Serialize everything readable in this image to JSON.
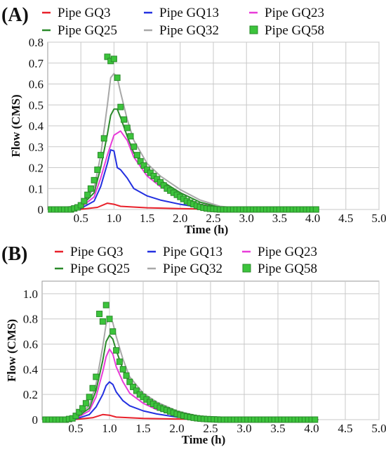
{
  "chart_data": [
    {
      "panel_label": "(A)",
      "type": "line",
      "xlabel": "Time (h)",
      "ylabel": "Flow (CMS)",
      "xlim": [
        0,
        5.0
      ],
      "ylim": [
        0,
        0.8
      ],
      "x_ticks": [
        "0.5",
        "1.0",
        "1.5",
        "2.0",
        "2.5",
        "3.0",
        "3.5",
        "4.0",
        "4.5",
        "5.0"
      ],
      "y_ticks": [
        "0",
        "0.1",
        "0.2",
        "0.3",
        "0.4",
        "0.5",
        "0.6",
        "0.7",
        "0.8"
      ],
      "grid": true,
      "legend_position": "top",
      "series": [
        {
          "name": "Pipe GQ3",
          "color": "#e8202a",
          "style": "line",
          "x": [
            0.0,
            0.5,
            0.75,
            0.9,
            1.0,
            1.1,
            1.5,
            2.0,
            2.5,
            3.0,
            4.1
          ],
          "y": [
            0.0,
            0.001,
            0.01,
            0.03,
            0.025,
            0.015,
            0.008,
            0.004,
            0.001,
            0.0,
            0.0
          ]
        },
        {
          "name": "Pipe GQ13",
          "color": "#2330e0",
          "style": "line",
          "x": [
            0.0,
            0.5,
            0.7,
            0.8,
            0.9,
            0.95,
            1.0,
            1.05,
            1.1,
            1.2,
            1.3,
            1.5,
            1.7,
            2.0,
            2.3,
            2.6,
            3.0,
            4.1
          ],
          "y": [
            0.0,
            0.005,
            0.04,
            0.11,
            0.22,
            0.285,
            0.28,
            0.2,
            0.19,
            0.15,
            0.1,
            0.065,
            0.045,
            0.025,
            0.01,
            0.003,
            0.0,
            0.0
          ]
        },
        {
          "name": "Pipe GQ23",
          "color": "#e83cd8",
          "style": "line",
          "x": [
            0.0,
            0.5,
            0.7,
            0.8,
            0.9,
            1.0,
            1.1,
            1.2,
            1.3,
            1.5,
            1.7,
            2.0,
            2.3,
            2.6,
            3.0,
            4.1
          ],
          "y": [
            0.0,
            0.01,
            0.06,
            0.15,
            0.26,
            0.355,
            0.375,
            0.33,
            0.25,
            0.16,
            0.11,
            0.06,
            0.025,
            0.008,
            0.002,
            0.0
          ]
        },
        {
          "name": "Pipe GQ25",
          "color": "#2a8a2a",
          "style": "line",
          "x": [
            0.0,
            0.5,
            0.7,
            0.8,
            0.9,
            0.95,
            1.0,
            1.05,
            1.1,
            1.2,
            1.3,
            1.5,
            1.7,
            2.0,
            2.3,
            2.6,
            3.0,
            4.1
          ],
          "y": [
            0.0,
            0.015,
            0.08,
            0.2,
            0.36,
            0.45,
            0.48,
            0.48,
            0.44,
            0.35,
            0.27,
            0.19,
            0.14,
            0.08,
            0.035,
            0.01,
            0.002,
            0.0
          ]
        },
        {
          "name": "Pipe GQ32",
          "color": "#a8a8a8",
          "style": "line",
          "x": [
            0.0,
            0.5,
            0.7,
            0.8,
            0.9,
            0.95,
            1.0,
            1.05,
            1.1,
            1.2,
            1.3,
            1.5,
            1.7,
            2.0,
            2.3,
            2.6,
            3.0,
            4.1
          ],
          "y": [
            0.0,
            0.02,
            0.1,
            0.26,
            0.5,
            0.63,
            0.65,
            0.63,
            0.56,
            0.43,
            0.33,
            0.22,
            0.16,
            0.095,
            0.045,
            0.015,
            0.003,
            0.0
          ]
        },
        {
          "name": "Pipe GQ58",
          "color": "#3cc43c",
          "border": "#2a8a2a",
          "style": "marker",
          "x": [
            0.05,
            0.1,
            0.15,
            0.2,
            0.25,
            0.3,
            0.35,
            0.4,
            0.45,
            0.5,
            0.55,
            0.6,
            0.65,
            0.7,
            0.75,
            0.8,
            0.85,
            0.9,
            0.95,
            1.0,
            1.05,
            1.1,
            1.15,
            1.2,
            1.25,
            1.3,
            1.35,
            1.4,
            1.45,
            1.5,
            1.55,
            1.6,
            1.65,
            1.7,
            1.75,
            1.8,
            1.85,
            1.9,
            1.95,
            2.0,
            2.05,
            2.1,
            2.15,
            2.2,
            2.25,
            2.3,
            2.35,
            2.4,
            2.45,
            2.5,
            2.55,
            2.6,
            2.65,
            2.7,
            2.75,
            2.8,
            2.85,
            2.9,
            2.95,
            3.0,
            3.05,
            3.1,
            3.15,
            3.2,
            3.25,
            3.3,
            3.35,
            3.4,
            3.45,
            3.5,
            3.55,
            3.6,
            3.65,
            3.7,
            3.75,
            3.8,
            3.85,
            3.9,
            3.95,
            4.0,
            4.05
          ],
          "y": [
            0.0,
            0.0,
            0.0,
            0.0,
            0.0,
            0.0,
            0.0,
            0.005,
            0.01,
            0.02,
            0.04,
            0.07,
            0.1,
            0.14,
            0.19,
            0.26,
            0.34,
            0.73,
            0.71,
            0.72,
            0.63,
            0.49,
            0.43,
            0.39,
            0.35,
            0.3,
            0.26,
            0.23,
            0.21,
            0.19,
            0.175,
            0.16,
            0.145,
            0.13,
            0.115,
            0.1,
            0.09,
            0.08,
            0.07,
            0.06,
            0.05,
            0.04,
            0.032,
            0.025,
            0.018,
            0.012,
            0.008,
            0.005,
            0.003,
            0.002,
            0.001,
            0.0,
            0.0,
            0.0,
            0.0,
            0.0,
            0.0,
            0.0,
            0.0,
            0.0,
            0.0,
            0.0,
            0.0,
            0.0,
            0.0,
            0.0,
            0.0,
            0.0,
            0.0,
            0.0,
            0.0,
            0.0,
            0.0,
            0.0,
            0.0,
            0.0,
            0.0,
            0.0,
            0.0,
            0.0,
            0.0
          ]
        }
      ]
    },
    {
      "panel_label": "(B)",
      "type": "line",
      "xlabel": "Time (h)",
      "ylabel": "Flow (CMS)",
      "xlim": [
        0,
        5.0
      ],
      "ylim": [
        0,
        1.1
      ],
      "x_ticks": [
        "0.5",
        "1.0",
        "1.5",
        "2.0",
        "2.5",
        "3.0",
        "3.5",
        "4.0",
        "4.5",
        "5.0"
      ],
      "y_ticks": [
        "0",
        "0.2",
        "0.4",
        "0.6",
        "0.8",
        "1.0"
      ],
      "grid": true,
      "legend_position": "top",
      "series": [
        {
          "name": "Pipe GQ3",
          "color": "#e8202a",
          "style": "line",
          "x": [
            0.0,
            0.5,
            0.75,
            0.9,
            1.0,
            1.1,
            1.5,
            2.0,
            2.5,
            3.0,
            4.1
          ],
          "y": [
            0.0,
            0.002,
            0.015,
            0.04,
            0.035,
            0.02,
            0.01,
            0.005,
            0.001,
            0.0,
            0.0
          ]
        },
        {
          "name": "Pipe GQ13",
          "color": "#2330e0",
          "style": "line",
          "x": [
            0.0,
            0.5,
            0.7,
            0.8,
            0.9,
            0.95,
            1.0,
            1.05,
            1.1,
            1.2,
            1.3,
            1.5,
            1.7,
            2.0,
            2.3,
            2.6,
            3.0,
            4.1
          ],
          "y": [
            0.0,
            0.005,
            0.04,
            0.1,
            0.2,
            0.27,
            0.3,
            0.28,
            0.22,
            0.15,
            0.11,
            0.07,
            0.045,
            0.02,
            0.008,
            0.002,
            0.0,
            0.0
          ]
        },
        {
          "name": "Pipe GQ23",
          "color": "#e83cd8",
          "style": "line",
          "x": [
            0.0,
            0.5,
            0.7,
            0.8,
            0.9,
            0.95,
            1.0,
            1.05,
            1.1,
            1.2,
            1.3,
            1.5,
            1.7,
            2.0,
            2.3,
            2.6,
            3.0,
            4.1
          ],
          "y": [
            0.0,
            0.01,
            0.07,
            0.18,
            0.38,
            0.5,
            0.56,
            0.52,
            0.42,
            0.3,
            0.21,
            0.13,
            0.08,
            0.04,
            0.015,
            0.004,
            0.0,
            0.0
          ]
        },
        {
          "name": "Pipe GQ25",
          "color": "#2a8a2a",
          "style": "line",
          "x": [
            0.0,
            0.5,
            0.7,
            0.8,
            0.9,
            0.95,
            1.0,
            1.05,
            1.1,
            1.2,
            1.3,
            1.5,
            1.7,
            2.0,
            2.3,
            2.6,
            3.0,
            4.1
          ],
          "y": [
            0.0,
            0.015,
            0.09,
            0.23,
            0.47,
            0.62,
            0.67,
            0.64,
            0.55,
            0.4,
            0.29,
            0.18,
            0.12,
            0.06,
            0.025,
            0.007,
            0.001,
            0.0
          ]
        },
        {
          "name": "Pipe GQ32",
          "color": "#a8a8a8",
          "style": "line",
          "x": [
            0.0,
            0.5,
            0.7,
            0.8,
            0.9,
            0.95,
            1.0,
            1.05,
            1.1,
            1.2,
            1.3,
            1.5,
            1.7,
            2.0,
            2.3,
            2.6,
            3.0,
            4.1
          ],
          "y": [
            0.0,
            0.02,
            0.11,
            0.28,
            0.58,
            0.76,
            0.81,
            0.77,
            0.66,
            0.48,
            0.34,
            0.21,
            0.14,
            0.07,
            0.03,
            0.008,
            0.001,
            0.0
          ]
        },
        {
          "name": "Pipe GQ58",
          "color": "#3cc43c",
          "border": "#2a8a2a",
          "style": "marker",
          "x": [
            0.05,
            0.1,
            0.15,
            0.2,
            0.25,
            0.3,
            0.35,
            0.4,
            0.45,
            0.5,
            0.55,
            0.6,
            0.65,
            0.7,
            0.75,
            0.8,
            0.85,
            0.9,
            0.95,
            1.0,
            1.05,
            1.1,
            1.15,
            1.2,
            1.25,
            1.3,
            1.35,
            1.4,
            1.45,
            1.5,
            1.55,
            1.6,
            1.65,
            1.7,
            1.75,
            1.8,
            1.85,
            1.9,
            1.95,
            2.0,
            2.05,
            2.1,
            2.15,
            2.2,
            2.25,
            2.3,
            2.35,
            2.4,
            2.45,
            2.5,
            2.55,
            2.6,
            2.65,
            2.7,
            2.75,
            2.8,
            2.85,
            2.9,
            2.95,
            3.0,
            3.05,
            3.1,
            3.15,
            3.2,
            3.25,
            3.3,
            3.35,
            3.4,
            3.45,
            3.5,
            3.55,
            3.6,
            3.65,
            3.7,
            3.75,
            3.8,
            3.85,
            3.9,
            3.95,
            4.0,
            4.05
          ],
          "y": [
            0.0,
            0.0,
            0.0,
            0.0,
            0.0,
            0.0,
            0.0,
            0.005,
            0.01,
            0.03,
            0.06,
            0.09,
            0.13,
            0.18,
            0.25,
            0.34,
            0.84,
            0.78,
            0.91,
            0.8,
            0.7,
            0.55,
            0.46,
            0.4,
            0.35,
            0.3,
            0.26,
            0.23,
            0.2,
            0.18,
            0.16,
            0.14,
            0.125,
            0.11,
            0.095,
            0.085,
            0.075,
            0.065,
            0.055,
            0.045,
            0.038,
            0.03,
            0.025,
            0.02,
            0.015,
            0.011,
            0.008,
            0.006,
            0.004,
            0.003,
            0.002,
            0.001,
            0.0,
            0.0,
            0.0,
            0.0,
            0.0,
            0.0,
            0.0,
            0.0,
            0.0,
            0.0,
            0.0,
            0.0,
            0.0,
            0.0,
            0.0,
            0.0,
            0.0,
            0.0,
            0.0,
            0.0,
            0.0,
            0.0,
            0.0,
            0.0,
            0.0,
            0.0,
            0.0,
            0.0,
            0.0
          ]
        }
      ]
    }
  ]
}
